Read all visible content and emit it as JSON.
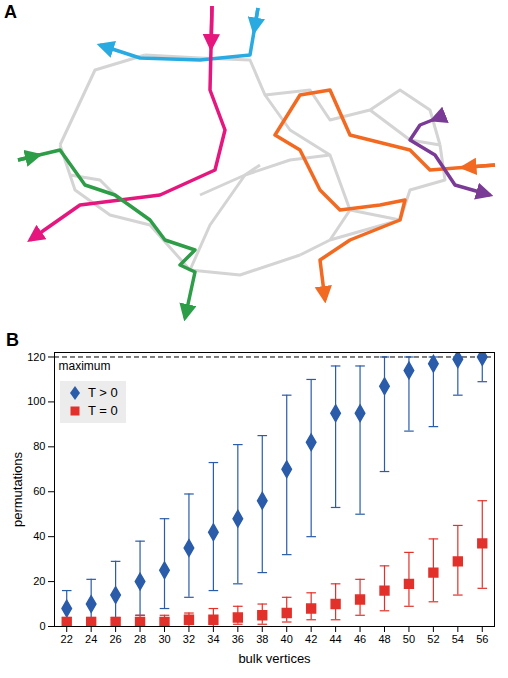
{
  "diagram": {
    "label": "A"
  },
  "chart_data": {
    "label": "B",
    "type": "scatter",
    "x_label": "bulk vertices",
    "y_label": "permutations",
    "x": [
      22,
      24,
      26,
      28,
      30,
      32,
      34,
      36,
      38,
      40,
      42,
      44,
      46,
      48,
      50,
      52,
      54,
      56
    ],
    "series": [
      {
        "name": "T > 0",
        "color": "#2a5caa",
        "marker": "diamond",
        "values": [
          8,
          10,
          14,
          20,
          25,
          35,
          42,
          48,
          56,
          70,
          82,
          95,
          95,
          107,
          114,
          117,
          119,
          120
        ],
        "error_low": [
          2,
          2,
          3,
          5,
          8,
          13,
          16,
          19,
          24,
          32,
          40,
          53,
          50,
          69,
          87,
          89,
          103,
          109
        ],
        "error_high": [
          16,
          21,
          29,
          38,
          48,
          59,
          73,
          81,
          85,
          103,
          110,
          116,
          116,
          120,
          120,
          120,
          120,
          120
        ]
      },
      {
        "name": "T = 0",
        "color": "#e2312b",
        "marker": "square",
        "values": [
          2,
          2,
          2,
          2,
          2,
          3,
          3,
          4,
          5,
          6,
          8,
          10,
          12,
          16,
          19,
          24,
          29,
          37
        ],
        "error_low": [
          0,
          0,
          0,
          0,
          0,
          0,
          0,
          1,
          1,
          2,
          3,
          3,
          5,
          7,
          9,
          11,
          14,
          17
        ],
        "error_high": [
          4,
          4,
          4,
          5,
          5,
          6,
          8,
          9,
          10,
          13,
          15,
          19,
          21,
          27,
          33,
          39,
          45,
          56
        ]
      }
    ],
    "annotations": [
      {
        "text": "maximum",
        "y": 120,
        "line_style": "dashed"
      }
    ],
    "xlim": [
      21,
      57
    ],
    "xticks": [
      22,
      24,
      26,
      28,
      30,
      32,
      34,
      36,
      38,
      40,
      42,
      44,
      46,
      48,
      50,
      52,
      54,
      56
    ],
    "ylim": [
      0,
      122
    ],
    "yticks": [
      0,
      20,
      40,
      60,
      80,
      100,
      120
    ],
    "legend": "upper left"
  }
}
